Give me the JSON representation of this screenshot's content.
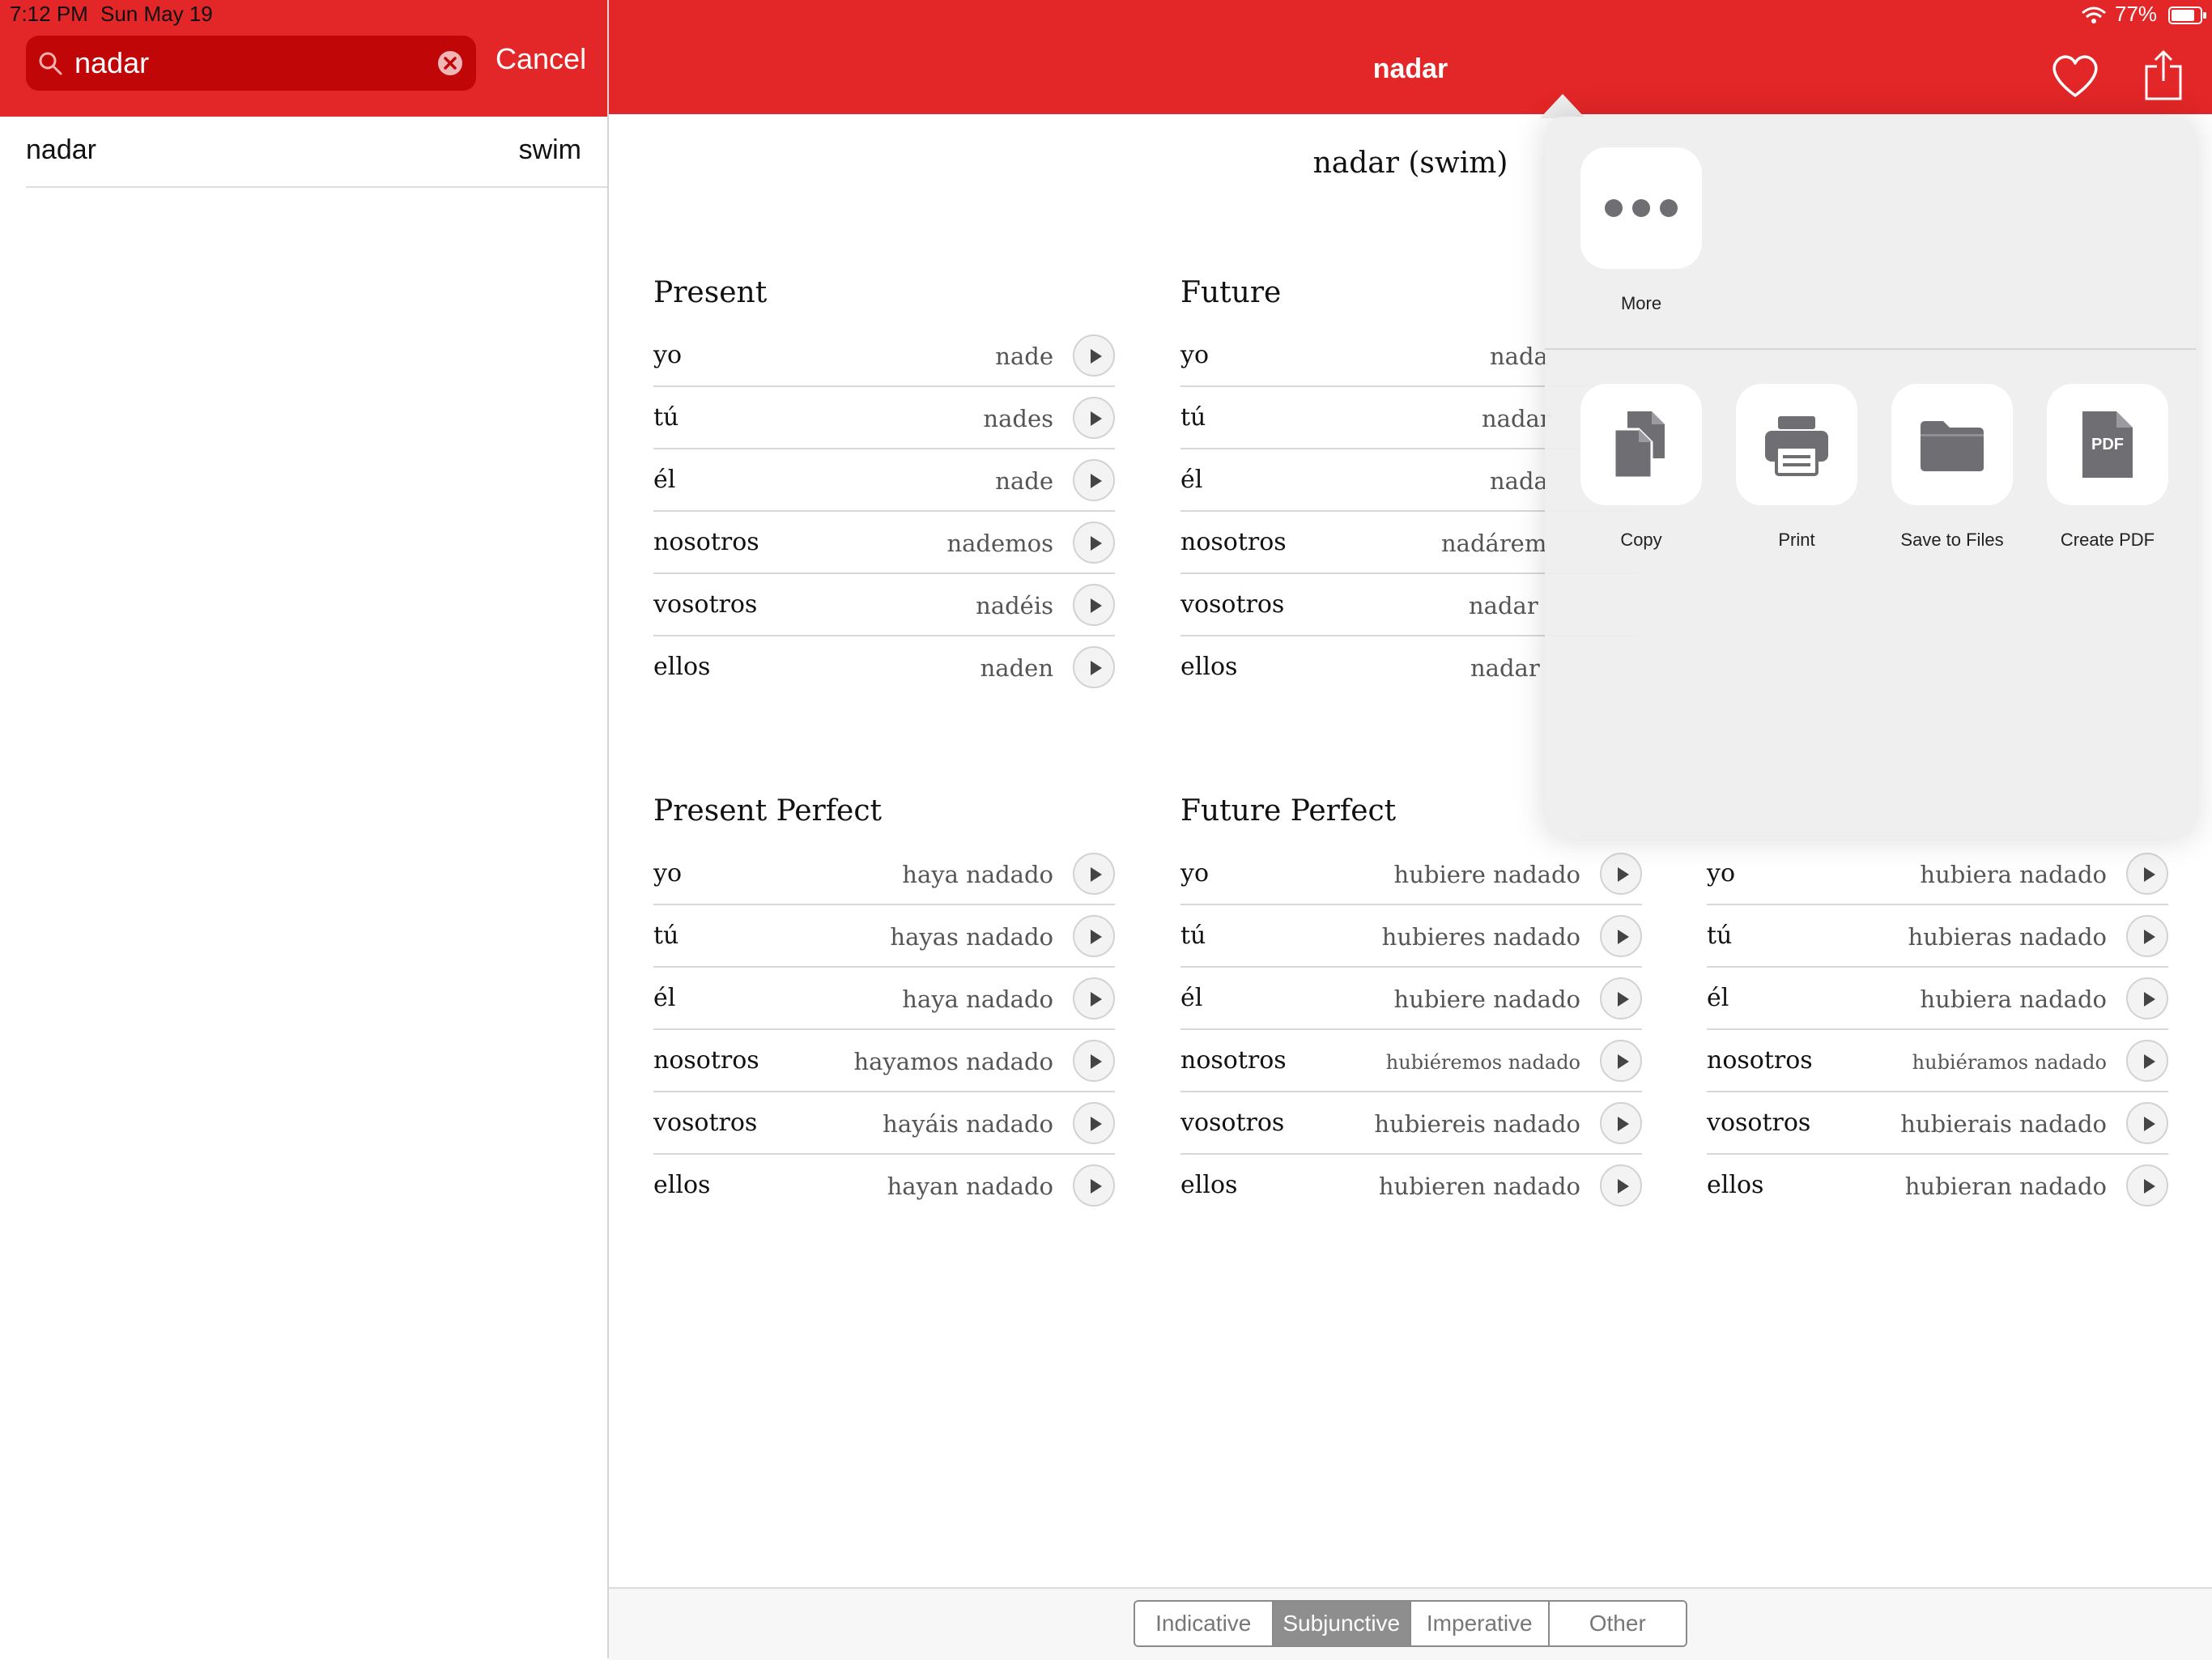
{
  "status_bar": {
    "time": "7:12 PM",
    "date": "Sun May 19",
    "battery": "77%"
  },
  "search": {
    "value": "nadar",
    "cancel_label": "Cancel"
  },
  "results": [
    {
      "word": "nadar",
      "translation": "swim"
    }
  ],
  "nav": {
    "title": "nadar"
  },
  "verb_heading": "nadar (swim)",
  "tenses": [
    {
      "title": "Present",
      "rows": [
        {
          "pronoun": "yo",
          "form": "nade"
        },
        {
          "pronoun": "tú",
          "form": "nades"
        },
        {
          "pronoun": "él",
          "form": "nade"
        },
        {
          "pronoun": "nosotros",
          "form": "nademos"
        },
        {
          "pronoun": "vosotros",
          "form": "nadéis"
        },
        {
          "pronoun": "ellos",
          "form": "naden"
        }
      ]
    },
    {
      "title": "Future",
      "rows": [
        {
          "pronoun": "yo",
          "form": "nada"
        },
        {
          "pronoun": "tú",
          "form": "nadar"
        },
        {
          "pronoun": "él",
          "form": "nada"
        },
        {
          "pronoun": "nosotros",
          "form": "nadárem"
        },
        {
          "pronoun": "vosotros",
          "form": "nadar"
        },
        {
          "pronoun": "ellos",
          "form": "nadar"
        }
      ]
    },
    {
      "title": "Present Perfect",
      "rows": [
        {
          "pronoun": "yo",
          "form": "haya nadado"
        },
        {
          "pronoun": "tú",
          "form": "hayas nadado"
        },
        {
          "pronoun": "él",
          "form": "haya nadado"
        },
        {
          "pronoun": "nosotros",
          "form": "hayamos nadado"
        },
        {
          "pronoun": "vosotros",
          "form": "hayáis nadado"
        },
        {
          "pronoun": "ellos",
          "form": "hayan nadado"
        }
      ]
    },
    {
      "title": "Future Perfect",
      "rows": [
        {
          "pronoun": "yo",
          "form": "hubiere nadado"
        },
        {
          "pronoun": "tú",
          "form": "hubieres nadado"
        },
        {
          "pronoun": "él",
          "form": "hubiere nadado"
        },
        {
          "pronoun": "nosotros",
          "form": "hubiéremos nadado"
        },
        {
          "pronoun": "vosotros",
          "form": "hubiereis nadado"
        },
        {
          "pronoun": "ellos",
          "form": "hubieren nadado"
        }
      ]
    },
    {
      "title": "",
      "rows": [
        {
          "pronoun": "yo",
          "form": "hubiera nadado"
        },
        {
          "pronoun": "tú",
          "form": "hubieras nadado"
        },
        {
          "pronoun": "él",
          "form": "hubiera nadado"
        },
        {
          "pronoun": "nosotros",
          "form": "hubiéramos nadado"
        },
        {
          "pronoun": "vosotros",
          "form": "hubierais nadado"
        },
        {
          "pronoun": "ellos",
          "form": "hubieran nadado"
        }
      ]
    }
  ],
  "share_sheet": {
    "more_label": "More",
    "actions": [
      {
        "label": "Copy",
        "icon": "copy-icon"
      },
      {
        "label": "Print",
        "icon": "printer-icon"
      },
      {
        "label": "Save to Files",
        "icon": "folder-icon"
      },
      {
        "label": "Create PDF",
        "icon": "pdf-icon",
        "badge": "PDF"
      }
    ]
  },
  "segments": {
    "items": [
      "Indicative",
      "Subjunctive",
      "Imperative",
      "Other"
    ],
    "selected": "Subjunctive"
  },
  "colors": {
    "brand_red": "#e32627",
    "search_red": "#c10608",
    "segment_active": "#8e8e8e"
  }
}
